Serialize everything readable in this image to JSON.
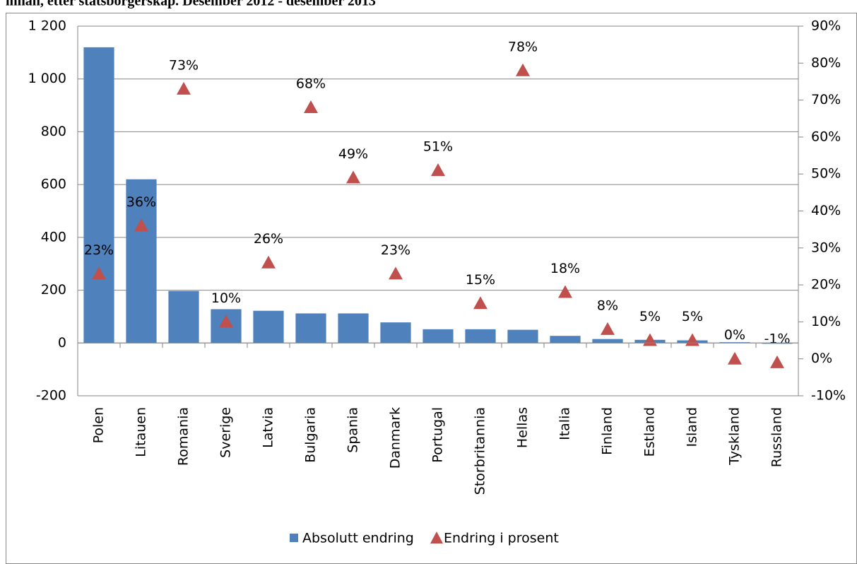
{
  "chart_data": {
    "type": "bar",
    "title": "innan, etter statsborgerskap. Desember 2012 - desember 2013",
    "categories": [
      "Polen",
      "Litauen",
      "Romania",
      "Sverige",
      "Latvia",
      "Bulgaria",
      "Spania",
      "Danmark",
      "Portugal",
      "Storbritannia",
      "Hellas",
      "Italia",
      "Finland",
      "Estland",
      "Island",
      "Tyskland",
      "Russland"
    ],
    "series": [
      {
        "name": "Absolutt endring",
        "color": "#4f81bd",
        "type": "bar",
        "values": [
          1120,
          620,
          197,
          128,
          122,
          112,
          112,
          78,
          52,
          52,
          50,
          27,
          15,
          12,
          10,
          3,
          -3
        ]
      },
      {
        "name": "Endring i prosent",
        "color": "#c0504d",
        "type": "scatter",
        "marker": "triangle",
        "axis": "y2",
        "values": [
          23,
          36,
          73,
          10,
          26,
          68,
          49,
          23,
          51,
          15,
          78,
          18,
          8,
          5,
          5,
          0,
          -1
        ],
        "value_labels": [
          "23%",
          "36%",
          "73%",
          "10%",
          "26%",
          "68%",
          "49%",
          "23%",
          "51%",
          "15%",
          "78%",
          "18%",
          "8%",
          "5%",
          "5%",
          "0%",
          "-1%"
        ]
      }
    ],
    "ylim": [
      -200,
      1200
    ],
    "yticks": [
      -200,
      0,
      200,
      400,
      600,
      800,
      {
        "value": 1000,
        "label": "1 000"
      },
      {
        "value": 1200,
        "label": "1 200"
      }
    ],
    "y2lim": [
      -10,
      90
    ],
    "y2ticks": [
      {
        "value": -10,
        "label": "-10%"
      },
      {
        "value": 0,
        "label": "0%"
      },
      {
        "value": 10,
        "label": "10%"
      },
      {
        "value": 20,
        "label": "20%"
      },
      {
        "value": 30,
        "label": "30%"
      },
      {
        "value": 40,
        "label": "40%"
      },
      {
        "value": 50,
        "label": "50%"
      },
      {
        "value": 60,
        "label": "60%"
      },
      {
        "value": 70,
        "label": "70%"
      },
      {
        "value": 80,
        "label": "80%"
      },
      {
        "value": 90,
        "label": "90%"
      }
    ],
    "grid": true,
    "legend": "bottom"
  }
}
